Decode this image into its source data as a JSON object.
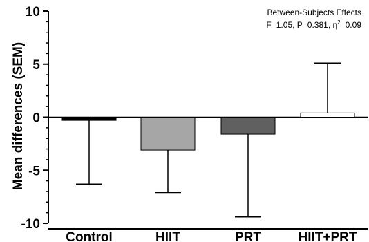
{
  "chart_data": {
    "type": "bar",
    "categories": [
      "Control",
      "HIIT",
      "PRT",
      "HIIT+PRT"
    ],
    "values": [
      -0.3,
      -3.1,
      -1.6,
      0.4
    ],
    "error_bar_ends": [
      -6.3,
      -7.1,
      -9.4,
      5.1
    ],
    "bar_colors": [
      "#000000",
      "#a6a6a6",
      "#606060",
      "#ffffff"
    ],
    "title": "",
    "xlabel": "",
    "ylabel": "Mean differences (SEM)",
    "ylim": [
      -10,
      10
    ],
    "yticks": [
      -10,
      -5,
      0,
      5,
      10
    ],
    "ytick_labels": [
      "-10",
      "-5",
      "0",
      "5",
      "10"
    ],
    "grid": false,
    "annotation": {
      "line1": "Between-Subjects Effects",
      "line2_prefix": "F=1.05, P=0.381, η",
      "line2_sup": "2",
      "line2_suffix": "=0.09"
    }
  }
}
